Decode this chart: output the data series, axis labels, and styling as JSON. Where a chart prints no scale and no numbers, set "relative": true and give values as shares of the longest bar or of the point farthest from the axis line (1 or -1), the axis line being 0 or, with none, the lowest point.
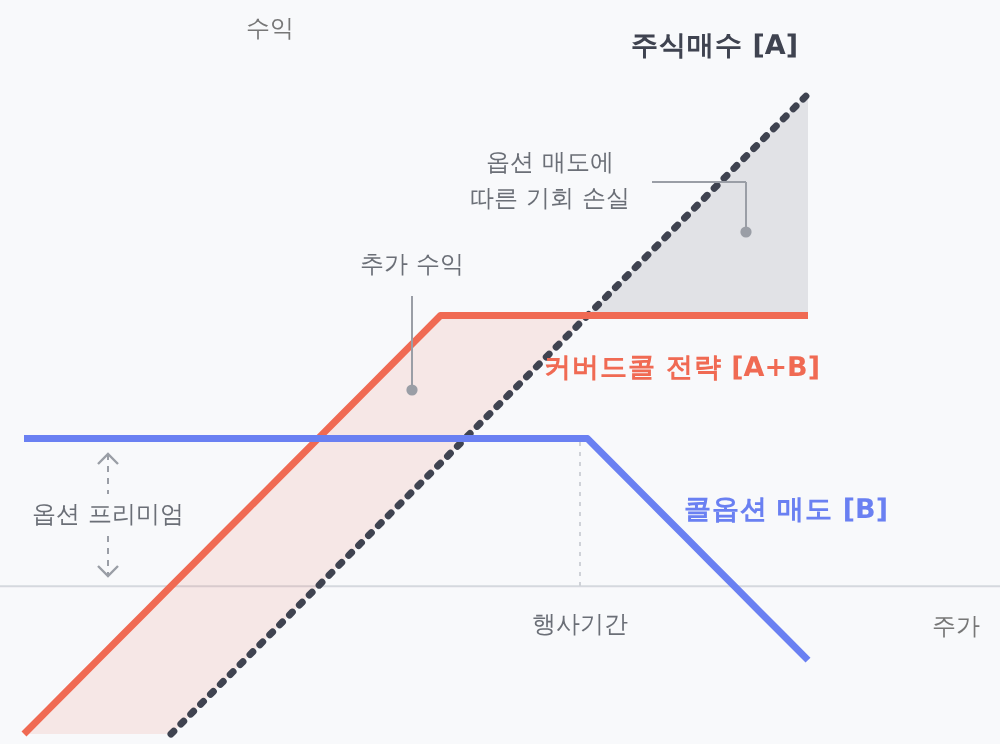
{
  "chart_data": {
    "type": "line",
    "relative": true,
    "xlabel": "주가",
    "ylabel": "수익",
    "categories": [
      null,
      null,
      null,
      null,
      null,
      null,
      null,
      null,
      null,
      null,
      null,
      null,
      null,
      null,
      null,
      null,
      null,
      null,
      null,
      null,
      null,
      null,
      null,
      null,
      null,
      null,
      null,
      null,
      null,
      null,
      null,
      null,
      null
    ],
    "series": [
      {
        "name": "주식매수 [A]",
        "color": "#3f4350",
        "line_style": "dotted",
        "values": [
          null,
          null,
          null,
          null,
          null,
          null,
          -0.3,
          -0.25,
          -0.2,
          -0.15,
          -0.1,
          -0.05,
          0,
          0.05,
          0.1,
          0.15,
          0.2,
          0.25,
          0.3,
          0.35,
          0.4,
          0.45,
          0.5,
          0.55,
          0.6,
          0.65,
          0.7,
          0.75,
          0.8,
          0.85,
          0.9,
          0.95,
          1.0
        ],
        "lower": [
          null,
          null,
          null,
          null,
          null,
          null,
          null,
          null,
          null,
          null,
          null,
          null,
          null,
          null,
          null,
          null,
          null,
          null,
          null,
          null,
          null,
          null,
          null,
          0.55,
          0.55,
          0.55,
          0.55,
          0.55,
          0.55,
          0.55,
          0.55,
          0.55,
          0.55
        ],
        "upper": [
          null,
          null,
          null,
          null,
          null,
          null,
          null,
          null,
          null,
          null,
          null,
          null,
          null,
          null,
          null,
          null,
          null,
          null,
          null,
          null,
          null,
          null,
          null,
          0.55,
          0.6,
          0.65,
          0.7,
          0.75,
          0.8,
          0.85,
          0.9,
          0.95,
          1.0
        ]
      },
      {
        "name": "커버드콜 전략 [A+B]",
        "color": "#f06a53",
        "line_style": "solid",
        "values": [
          -0.3,
          -0.25,
          -0.2,
          -0.15,
          -0.1,
          -0.05,
          0,
          0.05,
          0.1,
          0.15,
          0.2,
          0.25,
          0.3,
          0.35,
          0.4,
          0.45,
          0.5,
          0.55,
          0.55,
          0.55,
          0.55,
          0.55,
          0.55,
          0.55,
          0.55,
          0.55,
          0.55,
          0.55,
          0.55,
          0.55,
          0.55,
          0.55,
          0.55
        ],
        "lower": [
          -0.3,
          -0.3,
          -0.3,
          -0.3,
          -0.3,
          -0.3,
          -0.3,
          -0.25,
          -0.2,
          -0.15,
          -0.1,
          -0.05,
          0,
          0.05,
          0.1,
          0.15,
          0.2,
          0.25,
          0.3,
          0.35,
          0.4,
          0.45,
          0.5,
          0.55,
          null,
          null,
          null,
          null,
          null,
          null,
          null,
          null,
          null
        ],
        "upper": [
          -0.3,
          -0.25,
          -0.2,
          -0.15,
          -0.1,
          -0.05,
          0,
          0.05,
          0.1,
          0.15,
          0.2,
          0.25,
          0.3,
          0.35,
          0.4,
          0.45,
          0.5,
          0.55,
          0.55,
          0.55,
          0.55,
          0.55,
          0.55,
          0.55,
          null,
          null,
          null,
          null,
          null,
          null,
          null,
          null,
          null
        ]
      },
      {
        "name": "콜옵션 매도 [B]",
        "color": "#6a80f2",
        "line_style": "solid",
        "values": [
          0.3,
          0.3,
          0.3,
          0.3,
          0.3,
          0.3,
          0.3,
          0.3,
          0.3,
          0.3,
          0.3,
          0.3,
          0.3,
          0.3,
          0.3,
          0.3,
          0.3,
          0.3,
          0.3,
          0.3,
          0.3,
          0.3,
          0.3,
          0.3,
          0.25,
          0.2,
          0.15,
          0.1,
          0.05,
          0,
          -0.05,
          -0.1,
          -0.15
        ]
      }
    ],
    "annotations": [
      "추가 수익",
      "옵션 매도에\n따른 기회 손실",
      "옵션 프리미엄",
      "행사기간"
    ]
  }
}
